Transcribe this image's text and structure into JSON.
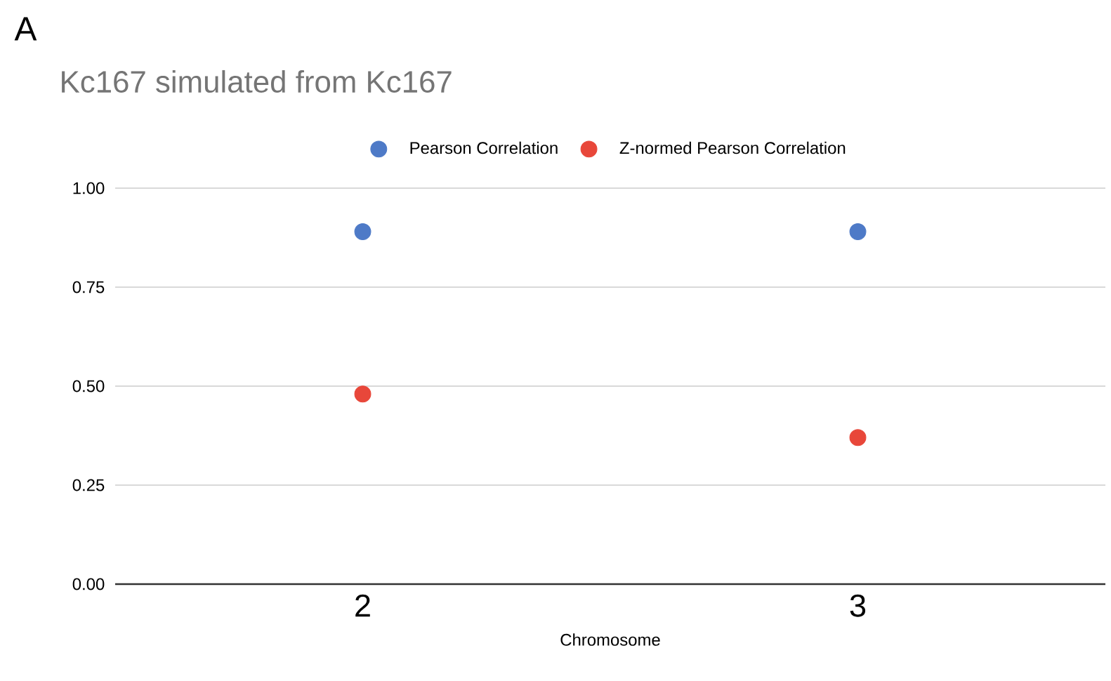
{
  "chart_data": {
    "type": "scatter",
    "title": "Kc167 simulated from Kc167",
    "xlabel": "Chromosome",
    "annotations": [
      "A"
    ],
    "categories": [
      "2",
      "3"
    ],
    "series": [
      {
        "name": "Pearson Correlation",
        "color": "#4e7ac7",
        "values": [
          0.89,
          0.89
        ]
      },
      {
        "name": "Z-normed Pearson Correlation",
        "color": "#e8473a",
        "values": [
          0.48,
          0.37
        ]
      }
    ],
    "ylim": [
      0,
      1
    ],
    "yticks": [
      {
        "value": 0,
        "label": "0.00"
      },
      {
        "value": 0.25,
        "label": "0.25"
      },
      {
        "value": 0.5,
        "label": "0.50"
      },
      {
        "value": 0.75,
        "label": "0.75"
      },
      {
        "value": 1,
        "label": "1.00"
      }
    ],
    "grid": "y",
    "legend": "top",
    "marker": "circle"
  }
}
